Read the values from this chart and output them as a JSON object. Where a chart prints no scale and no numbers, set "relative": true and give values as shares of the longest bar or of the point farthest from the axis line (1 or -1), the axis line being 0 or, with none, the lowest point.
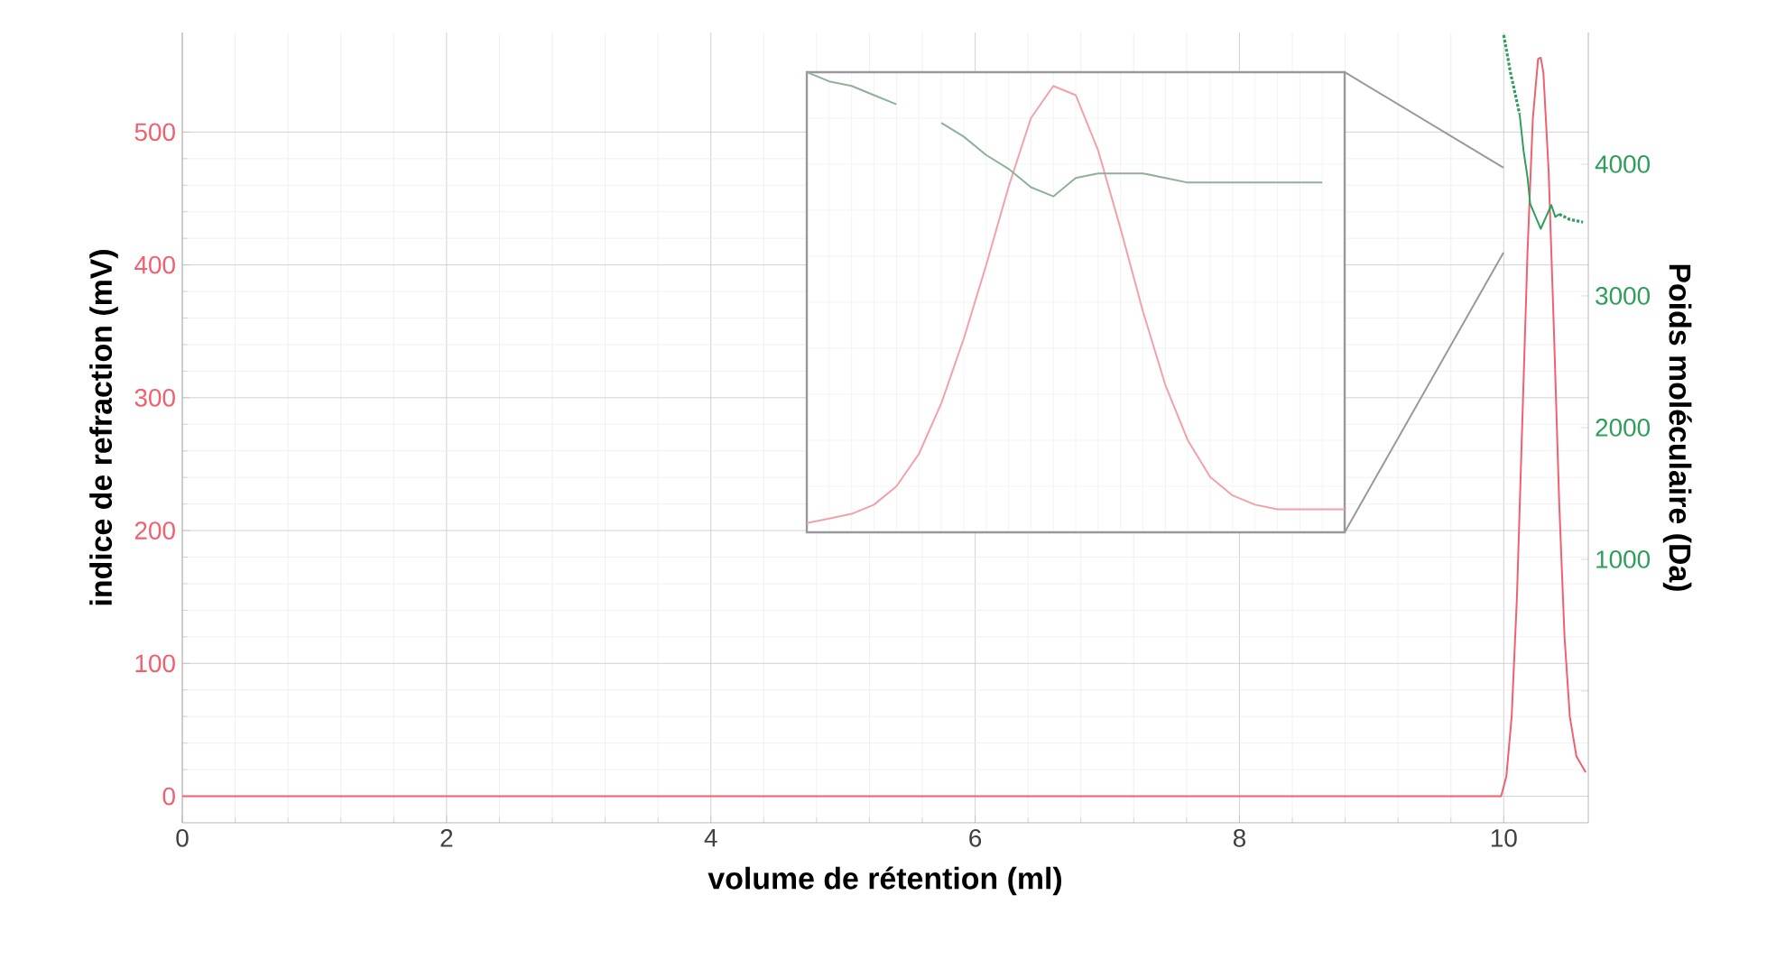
{
  "chart_data": [
    {
      "type": "line",
      "xlabel": "volume de rétention (ml)",
      "ylabel": "indice de refraction (mV)",
      "y2label": "Poids moléculaire (Da)",
      "xlim": [
        0,
        10.64
      ],
      "ylim": [
        -20,
        575
      ],
      "y2lim": [
        -1000,
        5000
      ],
      "xticks": [
        0,
        2,
        4,
        6,
        8,
        10
      ],
      "yticks": [
        0,
        100,
        200,
        300,
        400,
        500
      ],
      "y2ticks": [
        {
          "value": 0,
          "label": null
        },
        1000,
        2000,
        3000,
        4000
      ],
      "grid": true,
      "series": [
        {
          "color": "#f0606e",
          "x": [
            0,
            9.98,
            10.02,
            10.06,
            10.1,
            10.14,
            10.18,
            10.22,
            10.26,
            10.28,
            10.3,
            10.34,
            10.38,
            10.42,
            10.46,
            10.5,
            10.55,
            10.62
          ],
          "values": [
            0,
            0,
            15,
            60,
            150,
            280,
            410,
            510,
            555,
            556,
            545,
            470,
            350,
            220,
            120,
            60,
            30,
            18
          ]
        },
        {
          "color": "#2e9e5a",
          "axis": "y2",
          "line_style": "dotted",
          "x": [
            10.0,
            10.05,
            10.12
          ],
          "values": [
            4980,
            4700,
            4380
          ]
        },
        {
          "color": "#2e9e5a",
          "axis": "y2",
          "line_style": "solid",
          "x": [
            10.12,
            10.15,
            10.18,
            10.2,
            10.28,
            10.32,
            10.36,
            10.39,
            10.42
          ],
          "values": [
            4380,
            4100,
            3900,
            3700,
            3510,
            3600,
            3690,
            3600,
            3620
          ]
        },
        {
          "color": "#2e9e5a",
          "axis": "y2",
          "line_style": "dotted",
          "x": [
            10.42,
            10.5,
            10.6
          ],
          "values": [
            3620,
            3580,
            3560
          ]
        }
      ]
    },
    {
      "type": "line",
      "relative": true,
      "grid": true,
      "categories": [
        null,
        null,
        null,
        null,
        null,
        null,
        null,
        null,
        null,
        null,
        null,
        null,
        null,
        null,
        null,
        null,
        null,
        null,
        null,
        null,
        null,
        null,
        null,
        null,
        null
      ],
      "series": [
        {
          "color": "#f4a0a8",
          "values": [
            0.02,
            0.03,
            0.04,
            0.06,
            0.1,
            0.17,
            0.28,
            0.42,
            0.58,
            0.75,
            0.9,
            0.97,
            0.95,
            0.83,
            0.66,
            0.48,
            0.32,
            0.2,
            0.12,
            0.08,
            0.06,
            0.05,
            0.05,
            0.05,
            0.05
          ]
        },
        {
          "color": "#8fb09a",
          "values": [
            1.0,
            0.98,
            0.97,
            0.95,
            0.93,
            null,
            0.89,
            0.86,
            0.82,
            0.79,
            0.75,
            0.73,
            0.77,
            0.78,
            0.78,
            0.78,
            0.77,
            0.76,
            0.76,
            0.76,
            0.76,
            0.76,
            0.76,
            0.76,
            null
          ]
        }
      ]
    }
  ]
}
